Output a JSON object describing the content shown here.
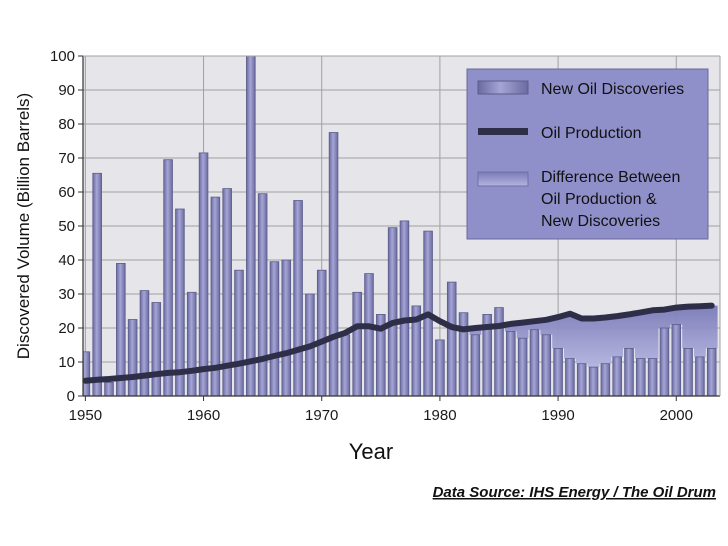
{
  "chart_data": {
    "type": "bar",
    "title": "",
    "xlabel": "Year",
    "ylabel": "Discovered Volume (Billion Barrels)",
    "xlim": [
      1949.8,
      2003.7
    ],
    "ylim": [
      0,
      100
    ],
    "x_ticks": [
      1950,
      1960,
      1970,
      1980,
      1990,
      2000
    ],
    "y_ticks": [
      0,
      10,
      20,
      30,
      40,
      50,
      60,
      70,
      80,
      90,
      100
    ],
    "grid": true,
    "legend_position": "top-right",
    "series": [
      {
        "name": "New Oil Discoveries",
        "kind": "bar",
        "color": "#8b8bbf",
        "x": [
          1950,
          1951,
          1952,
          1953,
          1954,
          1955,
          1956,
          1957,
          1958,
          1959,
          1960,
          1961,
          1962,
          1963,
          1964,
          1965,
          1966,
          1967,
          1968,
          1969,
          1970,
          1971,
          1972,
          1973,
          1974,
          1975,
          1976,
          1977,
          1978,
          1979,
          1980,
          1981,
          1982,
          1983,
          1984,
          1985,
          1986,
          1987,
          1988,
          1989,
          1990,
          1991,
          1992,
          1993,
          1994,
          1995,
          1996,
          1997,
          1998,
          1999,
          2000,
          2001,
          2002,
          2003
        ],
        "values": [
          13,
          65.5,
          4,
          39,
          22.5,
          31,
          27.5,
          69.5,
          55,
          30.5,
          71.5,
          58.5,
          61,
          37,
          100,
          59.5,
          39.5,
          40,
          57.5,
          30,
          37,
          77.5,
          18,
          30.5,
          36,
          24,
          49.5,
          51.5,
          26.5,
          48.5,
          16.5,
          33.5,
          24.5,
          18,
          24,
          26,
          19,
          17,
          19.5,
          18,
          14,
          11,
          9.5,
          8.5,
          9.5,
          11.5,
          14,
          11,
          11,
          20,
          21,
          14,
          11.5,
          14
        ]
      },
      {
        "name": "Oil Production",
        "kind": "line",
        "color": "#2e2e48",
        "x": [
          1950,
          1951,
          1952,
          1953,
          1954,
          1955,
          1956,
          1957,
          1958,
          1959,
          1960,
          1961,
          1962,
          1963,
          1964,
          1965,
          1966,
          1967,
          1968,
          1969,
          1970,
          1971,
          1972,
          1973,
          1974,
          1975,
          1976,
          1977,
          1978,
          1979,
          1980,
          1981,
          1982,
          1983,
          1984,
          1985,
          1986,
          1987,
          1988,
          1989,
          1990,
          1991,
          1992,
          1993,
          1994,
          1995,
          1996,
          1997,
          1998,
          1999,
          2000,
          2001,
          2002,
          2003
        ],
        "values": [
          4.5,
          4.8,
          5.0,
          5.3,
          5.6,
          6.0,
          6.4,
          6.8,
          7.0,
          7.4,
          7.9,
          8.3,
          8.9,
          9.5,
          10.2,
          10.9,
          11.8,
          12.6,
          13.6,
          14.6,
          16.0,
          17.4,
          18.6,
          20.5,
          20.5,
          19.8,
          21.5,
          22.2,
          22.5,
          24.0,
          22.0,
          20.3,
          19.6,
          20.0,
          20.3,
          20.6,
          21.2,
          21.6,
          22.0,
          22.4,
          23.2,
          24.2,
          22.8,
          22.8,
          23.1,
          23.5,
          24.0,
          24.6,
          25.2,
          25.4,
          26.0,
          26.3,
          26.4,
          26.6
        ]
      },
      {
        "name": "Difference Between\nOil Production &\nNew Discoveries",
        "kind": "area",
        "color": "#9c9cd0"
      }
    ],
    "legend": [
      "New Oil Discoveries",
      "Oil Production",
      "Difference Between",
      "Oil Production &",
      "New Discoveries"
    ],
    "source": "Data Source: IHS Energy / The Oil Drum"
  },
  "colors": {
    "plot_bg": "#e6e6ea",
    "grid": "#a0a0a0",
    "bar": "#8b8bbf",
    "bar_edge": "#5c5c8a",
    "line": "#2e2e48",
    "legend_bg": "#8f8fca",
    "area": "#9c9cd0"
  }
}
